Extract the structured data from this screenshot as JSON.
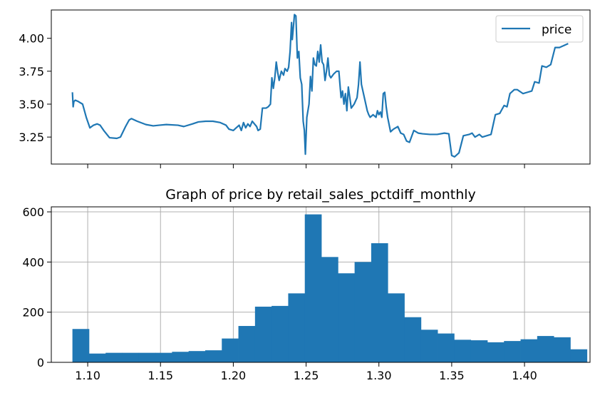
{
  "chart_data": [
    {
      "type": "line",
      "title": "",
      "xlabel": "",
      "ylabel": "",
      "xlim": [
        1.075,
        1.445
      ],
      "ylim": [
        3.045,
        4.215
      ],
      "x_ticks": [
        1.1,
        1.15,
        1.2,
        1.25,
        1.3,
        1.35,
        1.4
      ],
      "y_ticks": [
        3.25,
        3.5,
        3.75,
        4.0
      ],
      "y_tick_labels": [
        "3.25",
        "3.50",
        "3.75",
        "4.00"
      ],
      "grid": false,
      "legend": {
        "position": "top-right",
        "entries": [
          "price"
        ]
      },
      "series": [
        {
          "name": "price",
          "color": "#1f77b4",
          "points": [
            [
              1.0895,
              3.59
            ],
            [
              1.09,
              3.48
            ],
            [
              1.0905,
              3.52
            ],
            [
              1.0915,
              3.53
            ],
            [
              1.0935,
              3.52
            ],
            [
              1.0965,
              3.5
            ],
            [
              1.099,
              3.4
            ],
            [
              1.1015,
              3.32
            ],
            [
              1.104,
              3.34
            ],
            [
              1.1065,
              3.35
            ],
            [
              1.1085,
              3.34
            ],
            [
              1.111,
              3.3
            ],
            [
              1.115,
              3.245
            ],
            [
              1.12,
              3.24
            ],
            [
              1.1225,
              3.25
            ],
            [
              1.126,
              3.33
            ],
            [
              1.1285,
              3.38
            ],
            [
              1.13,
              3.39
            ],
            [
              1.134,
              3.37
            ],
            [
              1.14,
              3.345
            ],
            [
              1.145,
              3.335
            ],
            [
              1.149,
              3.34
            ],
            [
              1.154,
              3.345
            ],
            [
              1.162,
              3.34
            ],
            [
              1.166,
              3.33
            ],
            [
              1.172,
              3.35
            ],
            [
              1.176,
              3.365
            ],
            [
              1.181,
              3.37
            ],
            [
              1.186,
              3.37
            ],
            [
              1.191,
              3.36
            ],
            [
              1.195,
              3.34
            ],
            [
              1.197,
              3.31
            ],
            [
              1.2,
              3.3
            ],
            [
              1.202,
              3.32
            ],
            [
              1.204,
              3.34
            ],
            [
              1.2055,
              3.3
            ],
            [
              1.207,
              3.36
            ],
            [
              1.2085,
              3.32
            ],
            [
              1.21,
              3.35
            ],
            [
              1.2115,
              3.33
            ],
            [
              1.213,
              3.37
            ],
            [
              1.2145,
              3.35
            ],
            [
              1.216,
              3.33
            ],
            [
              1.217,
              3.3
            ],
            [
              1.2185,
              3.31
            ],
            [
              1.22,
              3.47
            ],
            [
              1.2225,
              3.47
            ],
            [
              1.224,
              3.48
            ],
            [
              1.2255,
              3.5
            ],
            [
              1.2265,
              3.7
            ],
            [
              1.2275,
              3.62
            ],
            [
              1.2285,
              3.7
            ],
            [
              1.2295,
              3.82
            ],
            [
              1.2305,
              3.74
            ],
            [
              1.2315,
              3.68
            ],
            [
              1.233,
              3.75
            ],
            [
              1.2345,
              3.72
            ],
            [
              1.2355,
              3.77
            ],
            [
              1.237,
              3.75
            ],
            [
              1.238,
              3.78
            ],
            [
              1.239,
              3.9
            ],
            [
              1.24,
              4.12
            ],
            [
              1.2405,
              3.99
            ],
            [
              1.241,
              4.05
            ],
            [
              1.242,
              4.18
            ],
            [
              1.243,
              4.17
            ],
            [
              1.244,
              3.85
            ],
            [
              1.245,
              3.9
            ],
            [
              1.246,
              3.7
            ],
            [
              1.247,
              3.65
            ],
            [
              1.248,
              3.37
            ],
            [
              1.2488,
              3.3
            ],
            [
              1.2495,
              3.12
            ],
            [
              1.2505,
              3.4
            ],
            [
              1.252,
              3.5
            ],
            [
              1.253,
              3.71
            ],
            [
              1.254,
              3.6
            ],
            [
              1.255,
              3.85
            ],
            [
              1.256,
              3.8
            ],
            [
              1.257,
              3.79
            ],
            [
              1.258,
              3.9
            ],
            [
              1.259,
              3.82
            ],
            [
              1.26,
              3.95
            ],
            [
              1.261,
              3.82
            ],
            [
              1.262,
              3.8
            ],
            [
              1.263,
              3.68
            ],
            [
              1.264,
              3.75
            ],
            [
              1.265,
              3.85
            ],
            [
              1.266,
              3.72
            ],
            [
              1.267,
              3.7
            ],
            [
              1.269,
              3.73
            ],
            [
              1.271,
              3.75
            ],
            [
              1.2725,
              3.75
            ],
            [
              1.274,
              3.55
            ],
            [
              1.275,
              3.6
            ],
            [
              1.276,
              3.5
            ],
            [
              1.277,
              3.58
            ],
            [
              1.278,
              3.45
            ],
            [
              1.279,
              3.63
            ],
            [
              1.28,
              3.55
            ],
            [
              1.281,
              3.47
            ],
            [
              1.283,
              3.5
            ],
            [
              1.285,
              3.55
            ],
            [
              1.286,
              3.65
            ],
            [
              1.287,
              3.82
            ],
            [
              1.288,
              3.65
            ],
            [
              1.29,
              3.55
            ],
            [
              1.291,
              3.5
            ],
            [
              1.292,
              3.45
            ],
            [
              1.293,
              3.42
            ],
            [
              1.294,
              3.4
            ],
            [
              1.296,
              3.42
            ],
            [
              1.298,
              3.4
            ],
            [
              1.299,
              3.45
            ],
            [
              1.3,
              3.42
            ],
            [
              1.301,
              3.44
            ],
            [
              1.302,
              3.4
            ],
            [
              1.303,
              3.58
            ],
            [
              1.304,
              3.59
            ],
            [
              1.305,
              3.48
            ],
            [
              1.306,
              3.4
            ],
            [
              1.308,
              3.29
            ],
            [
              1.31,
              3.31
            ],
            [
              1.313,
              3.33
            ],
            [
              1.315,
              3.28
            ],
            [
              1.317,
              3.27
            ],
            [
              1.319,
              3.22
            ],
            [
              1.321,
              3.21
            ],
            [
              1.324,
              3.3
            ],
            [
              1.327,
              3.28
            ],
            [
              1.33,
              3.275
            ],
            [
              1.335,
              3.27
            ],
            [
              1.34,
              3.27
            ],
            [
              1.345,
              3.28
            ],
            [
              1.348,
              3.275
            ],
            [
              1.35,
              3.11
            ],
            [
              1.352,
              3.1
            ],
            [
              1.355,
              3.13
            ],
            [
              1.358,
              3.26
            ],
            [
              1.362,
              3.27
            ],
            [
              1.364,
              3.28
            ],
            [
              1.366,
              3.25
            ],
            [
              1.369,
              3.27
            ],
            [
              1.371,
              3.25
            ],
            [
              1.374,
              3.26
            ],
            [
              1.377,
              3.27
            ],
            [
              1.38,
              3.42
            ],
            [
              1.383,
              3.43
            ],
            [
              1.386,
              3.49
            ],
            [
              1.388,
              3.48
            ],
            [
              1.39,
              3.58
            ],
            [
              1.393,
              3.61
            ],
            [
              1.395,
              3.61
            ],
            [
              1.399,
              3.58
            ],
            [
              1.402,
              3.59
            ],
            [
              1.405,
              3.6
            ],
            [
              1.407,
              3.67
            ],
            [
              1.41,
              3.66
            ],
            [
              1.412,
              3.79
            ],
            [
              1.415,
              3.78
            ],
            [
              1.418,
              3.8
            ],
            [
              1.421,
              3.93
            ],
            [
              1.424,
              3.93
            ],
            [
              1.43,
              3.96
            ]
          ]
        }
      ]
    },
    {
      "type": "bar",
      "title": "Graph of price by retail_sales_pctdiff_monthly",
      "xlabel": "",
      "ylabel": "",
      "xlim": [
        1.075,
        1.445
      ],
      "ylim": [
        0,
        620
      ],
      "x_ticks": [
        1.1,
        1.15,
        1.2,
        1.25,
        1.3,
        1.35,
        1.4
      ],
      "x_tick_labels": [
        "1.10",
        "1.15",
        "1.20",
        "1.25",
        "1.30",
        "1.35",
        "1.40"
      ],
      "y_ticks": [
        0,
        200,
        400,
        600
      ],
      "y_tick_labels": [
        "0",
        "200",
        "400",
        "600"
      ],
      "grid": true,
      "bar_color": "#1f77b4",
      "bin_start": 1.0895,
      "bin_width": 0.0114,
      "counts": [
        133,
        35,
        38,
        38,
        38,
        38,
        42,
        45,
        48,
        95,
        145,
        222,
        225,
        275,
        590,
        420,
        355,
        400,
        475,
        275,
        180,
        130,
        115,
        90,
        88,
        80,
        85,
        92,
        105,
        100,
        52
      ]
    }
  ]
}
